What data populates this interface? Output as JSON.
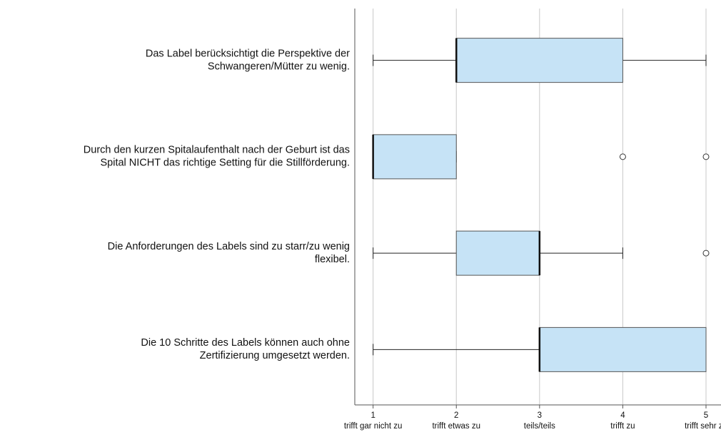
{
  "chart_data": {
    "type": "boxplot",
    "orientation": "horizontal",
    "categories": [
      [
        "Das Label berücksichtigt die Perspektive der",
        "Schwangeren/Mütter zu wenig."
      ],
      [
        "Durch den kurzen Spitalaufenthalt nach der Geburt ist das",
        "Spital NICHT das richtige Setting für die Stillförderung."
      ],
      [
        "Die Anforderungen des Labels sind zu starr/zu wenig",
        "flexibel."
      ],
      [
        "Die 10 Schritte des Labels können auch ohne",
        "Zertifizierung umgesetzt werden."
      ]
    ],
    "boxes": [
      {
        "min": 1,
        "q1": 2,
        "median": 2,
        "q3": 4,
        "max": 5,
        "outliers": []
      },
      {
        "min": 1,
        "q1": 1,
        "median": 1,
        "q3": 2,
        "max": 2,
        "outliers": [
          4,
          5
        ]
      },
      {
        "min": 1,
        "q1": 2,
        "median": 3,
        "q3": 3,
        "max": 4,
        "outliers": [
          5
        ]
      },
      {
        "min": 1,
        "q1": 3,
        "median": 3,
        "q3": 5,
        "max": 5,
        "outliers": []
      }
    ],
    "color": "#c6e3f6",
    "xlim": [
      0.78,
      5.18
    ],
    "xticks": [
      1,
      2,
      3,
      4,
      5
    ],
    "xtick_labels": [
      "trifft gar nicht zu",
      "trifft etwas zu",
      "teils/teils",
      "trifft zu",
      "trifft sehr zu"
    ],
    "grid": true
  }
}
